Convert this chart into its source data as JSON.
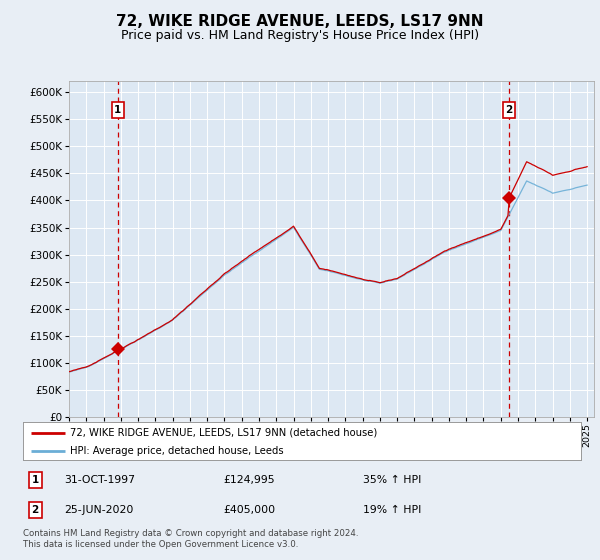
{
  "title": "72, WIKE RIDGE AVENUE, LEEDS, LS17 9NN",
  "subtitle": "Price paid vs. HM Land Registry's House Price Index (HPI)",
  "title_fontsize": 11,
  "subtitle_fontsize": 9,
  "background_color": "#e8eef5",
  "plot_bg_color": "#dde8f3",
  "ylim": [
    0,
    620000
  ],
  "yticks": [
    0,
    50000,
    100000,
    150000,
    200000,
    250000,
    300000,
    350000,
    400000,
    450000,
    500000,
    550000,
    600000
  ],
  "ytick_labels": [
    "£0",
    "£50K",
    "£100K",
    "£150K",
    "£200K",
    "£250K",
    "£300K",
    "£350K",
    "£400K",
    "£450K",
    "£500K",
    "£550K",
    "£600K"
  ],
  "sale1_date_num": 1997.83,
  "sale1_price": 124995,
  "sale1_label": "1",
  "sale2_date_num": 2020.48,
  "sale2_price": 405000,
  "sale2_label": "2",
  "hpi_line_color": "#6baed6",
  "price_line_color": "#cc0000",
  "sale_dot_color": "#cc0000",
  "vline_color": "#cc0000",
  "grid_color": "#ffffff",
  "legend_entry1": "72, WIKE RIDGE AVENUE, LEEDS, LS17 9NN (detached house)",
  "legend_entry2": "HPI: Average price, detached house, Leeds",
  "table_row1_box": "1",
  "table_row1_date": "31-OCT-1997",
  "table_row1_price": "£124,995",
  "table_row1_hpi": "35% ↑ HPI",
  "table_row2_box": "2",
  "table_row2_date": "25-JUN-2020",
  "table_row2_price": "£405,000",
  "table_row2_hpi": "19% ↑ HPI",
  "footnote": "Contains HM Land Registry data © Crown copyright and database right 2024.\nThis data is licensed under the Open Government Licence v3.0.",
  "xstart": 1995,
  "xend": 2025
}
